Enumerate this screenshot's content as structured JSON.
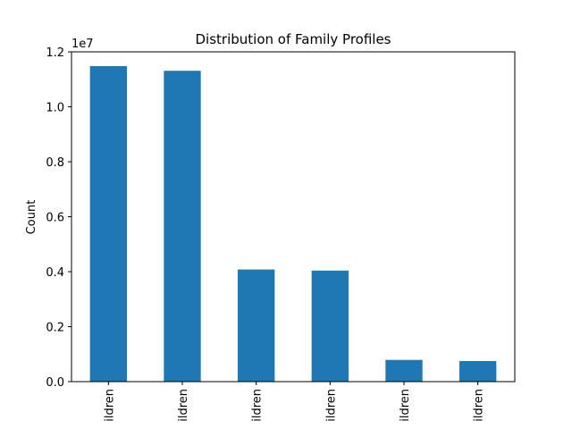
{
  "chart_data": {
    "type": "bar",
    "title": "Distribution of Family Profiles",
    "xlabel": "",
    "ylabel": "Count",
    "y_offset_label": "1e7",
    "y_scale": 10000000,
    "ylim": [
      0,
      12000000
    ],
    "yticks": [
      0,
      2000000,
      4000000,
      6000000,
      8000000,
      10000000,
      12000000
    ],
    "ytick_labels": [
      "0.0",
      "0.2",
      "0.4",
      "0.6",
      "0.8",
      "1.0",
      "1.2"
    ],
    "categories": [
      "ildren",
      "ildren",
      "ildren",
      "ildren",
      "ildren",
      "ildren"
    ],
    "values": [
      11480000,
      11310000,
      4080000,
      4040000,
      790000,
      750000
    ],
    "bar_color": "#1f77b4",
    "grid": false,
    "legend": "none"
  }
}
